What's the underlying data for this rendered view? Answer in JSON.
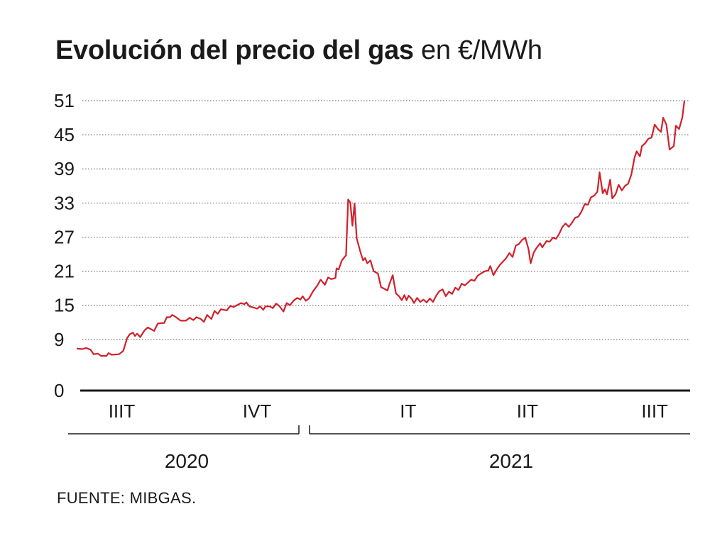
{
  "title": {
    "bold": "Evolución del precio del gas",
    "unit": "en €/MWh"
  },
  "source": "FUENTE: MIBGAS.",
  "colors": {
    "line": "#d0202a",
    "grid": "#555555",
    "text": "#1a1a1a"
  },
  "chart_data": {
    "type": "line",
    "title": "Evolución del precio del gas en €/MWh",
    "xlabel": "",
    "ylabel": "",
    "ylim": [
      0,
      51
    ],
    "yticks": [
      0,
      9,
      15,
      21,
      27,
      33,
      39,
      45,
      51
    ],
    "grid": true,
    "legend": "none",
    "quarter_ticks": [
      {
        "label": "IIIT",
        "x": 8.5
      },
      {
        "label": "IVT",
        "x": 34
      },
      {
        "label": "IT",
        "x": 62.5
      },
      {
        "label": "IIT",
        "x": 85
      },
      {
        "label": "IIIT",
        "x": 109
      }
    ],
    "years": [
      {
        "label": "2020",
        "from": 0,
        "to": 46
      },
      {
        "label": "2021",
        "from": 47,
        "to": 127
      }
    ],
    "series": [
      {
        "values": [
          [
            0,
            7.4
          ],
          [
            1,
            7.3
          ],
          [
            1.8,
            7.5
          ],
          [
            2.6,
            7.2
          ],
          [
            3.2,
            6.4
          ],
          [
            4,
            6.5
          ],
          [
            4.6,
            6.1
          ],
          [
            5.6,
            6.1
          ],
          [
            6,
            6.6
          ],
          [
            6.6,
            6.3
          ],
          [
            8,
            6.4
          ],
          [
            8.8,
            7.0
          ],
          [
            9.5,
            9.2
          ],
          [
            10,
            9.9
          ],
          [
            10.6,
            10.2
          ],
          [
            11,
            9.6
          ],
          [
            11.4,
            10.0
          ],
          [
            12,
            9.4
          ],
          [
            12.8,
            10.6
          ],
          [
            13.4,
            11.1
          ],
          [
            14,
            10.8
          ],
          [
            14.6,
            10.5
          ],
          [
            15.3,
            11.8
          ],
          [
            16.5,
            11.9
          ],
          [
            17,
            12.9
          ],
          [
            17.6,
            12.9
          ],
          [
            18,
            13.3
          ],
          [
            18.6,
            13.0
          ],
          [
            19.6,
            12.3
          ],
          [
            20.6,
            12.3
          ],
          [
            21.3,
            12.8
          ],
          [
            22,
            12.4
          ],
          [
            22.6,
            12.9
          ],
          [
            23.4,
            12.6
          ],
          [
            24,
            12.1
          ],
          [
            24.6,
            13.3
          ],
          [
            25.4,
            12.6
          ],
          [
            26,
            14.0
          ],
          [
            26.6,
            13.5
          ],
          [
            27.2,
            14.3
          ],
          [
            28.3,
            14.1
          ],
          [
            29,
            14.9
          ],
          [
            29.6,
            14.7
          ],
          [
            30.4,
            15.1
          ],
          [
            31,
            15.4
          ],
          [
            31.6,
            15.2
          ],
          [
            32,
            15.5
          ],
          [
            32.6,
            14.8
          ],
          [
            33.4,
            14.6
          ],
          [
            34,
            14.4
          ],
          [
            34.6,
            14.8
          ],
          [
            35.2,
            14.2
          ],
          [
            35.6,
            14.8
          ],
          [
            36.4,
            14.8
          ],
          [
            37,
            14.5
          ],
          [
            37.6,
            15.3
          ],
          [
            38.2,
            14.9
          ],
          [
            39,
            13.9
          ],
          [
            39.6,
            15.4
          ],
          [
            40.2,
            15.0
          ],
          [
            41,
            15.9
          ],
          [
            41.6,
            16.3
          ],
          [
            42.2,
            16.0
          ],
          [
            42.6,
            16.6
          ],
          [
            43.2,
            15.8
          ],
          [
            43.8,
            16.2
          ],
          [
            44.6,
            17.5
          ],
          [
            45.4,
            18.5
          ],
          [
            46,
            19.5
          ],
          [
            46.8,
            18.6
          ],
          [
            47.4,
            19.9
          ],
          [
            48,
            19.6
          ],
          [
            48.8,
            19.8
          ],
          [
            49,
            21.5
          ],
          [
            49.4,
            21.3
          ],
          [
            50,
            22.9
          ],
          [
            50.8,
            23.8
          ],
          [
            51.2,
            33.6
          ],
          [
            51.6,
            33.1
          ],
          [
            52,
            29.0
          ],
          [
            52.4,
            32.9
          ],
          [
            52.8,
            26.8
          ],
          [
            53.4,
            24.7
          ],
          [
            54,
            22.9
          ],
          [
            54.4,
            23.3
          ],
          [
            54.8,
            22.4
          ],
          [
            55.4,
            22.9
          ],
          [
            56,
            21.0
          ],
          [
            56.8,
            20.6
          ],
          [
            57.4,
            18.2
          ],
          [
            58,
            17.9
          ],
          [
            58.6,
            17.6
          ],
          [
            59,
            18.8
          ],
          [
            59.6,
            20.3
          ],
          [
            60.2,
            17.1
          ],
          [
            60.8,
            16.6
          ],
          [
            61.3,
            15.9
          ],
          [
            61.8,
            16.8
          ],
          [
            62.2,
            15.9
          ],
          [
            62.6,
            16.7
          ],
          [
            63.2,
            16.1
          ],
          [
            63.6,
            15.4
          ],
          [
            64.2,
            16.3
          ],
          [
            64.8,
            15.6
          ],
          [
            65.4,
            16.0
          ],
          [
            66,
            15.5
          ],
          [
            66.6,
            16.2
          ],
          [
            67.2,
            15.6
          ],
          [
            67.8,
            16.7
          ],
          [
            68.4,
            17.5
          ],
          [
            69,
            17.8
          ],
          [
            69.6,
            16.6
          ],
          [
            70.2,
            17.4
          ],
          [
            70.8,
            17.0
          ],
          [
            71.4,
            18.1
          ],
          [
            72,
            17.7
          ],
          [
            72.6,
            18.8
          ],
          [
            73.2,
            18.5
          ],
          [
            73.8,
            19.0
          ],
          [
            74.4,
            19.5
          ],
          [
            75,
            19.3
          ],
          [
            75.6,
            20.2
          ],
          [
            76.4,
            20.7
          ],
          [
            77,
            21.0
          ],
          [
            77.6,
            21.1
          ],
          [
            78,
            21.9
          ],
          [
            78.6,
            20.3
          ],
          [
            79.2,
            21.3
          ],
          [
            79.8,
            22.1
          ],
          [
            80.4,
            22.7
          ],
          [
            81,
            23.3
          ],
          [
            81.6,
            24.2
          ],
          [
            82.2,
            23.5
          ],
          [
            82.8,
            25.5
          ],
          [
            83.4,
            25.8
          ],
          [
            84,
            26.5
          ],
          [
            84.6,
            26.9
          ],
          [
            85.2,
            24.9
          ],
          [
            85.6,
            22.4
          ],
          [
            86.2,
            24.3
          ],
          [
            86.8,
            25.2
          ],
          [
            87.4,
            25.9
          ],
          [
            87.8,
            25.2
          ],
          [
            88.6,
            26.3
          ],
          [
            89.2,
            26.2
          ],
          [
            89.8,
            26.9
          ],
          [
            90.4,
            26.7
          ],
          [
            91,
            27.6
          ],
          [
            91.6,
            28.8
          ],
          [
            92.2,
            29.4
          ],
          [
            92.8,
            28.8
          ],
          [
            93.4,
            29.5
          ],
          [
            94,
            30.4
          ],
          [
            94.6,
            30.6
          ],
          [
            95.2,
            31.5
          ],
          [
            95.8,
            32.8
          ],
          [
            96.4,
            32.7
          ],
          [
            97,
            34.0
          ],
          [
            97.6,
            34.3
          ],
          [
            98.2,
            35.0
          ],
          [
            98.6,
            38.4
          ],
          [
            99.2,
            34.7
          ],
          [
            99.6,
            35.4
          ],
          [
            100,
            34.5
          ],
          [
            100.6,
            37.1
          ],
          [
            101,
            33.8
          ],
          [
            101.6,
            34.5
          ],
          [
            102.2,
            36.2
          ],
          [
            102.8,
            35.2
          ],
          [
            103.4,
            36.0
          ],
          [
            104,
            36.4
          ],
          [
            104.6,
            38.0
          ],
          [
            105.2,
            41.0
          ],
          [
            105.6,
            42.1
          ],
          [
            106.2,
            41.2
          ],
          [
            106.6,
            43.0
          ],
          [
            107.2,
            43.5
          ],
          [
            107.8,
            44.3
          ],
          [
            108.4,
            44.5
          ],
          [
            109,
            46.8
          ],
          [
            109.6,
            46.0
          ],
          [
            110.2,
            45.5
          ],
          [
            110.6,
            48.0
          ],
          [
            111.2,
            46.8
          ],
          [
            111.8,
            42.4
          ],
          [
            112.6,
            43.0
          ],
          [
            113,
            46.6
          ],
          [
            113.6,
            46.0
          ],
          [
            114.2,
            48.0
          ],
          [
            114.6,
            51.0
          ]
        ]
      }
    ]
  }
}
